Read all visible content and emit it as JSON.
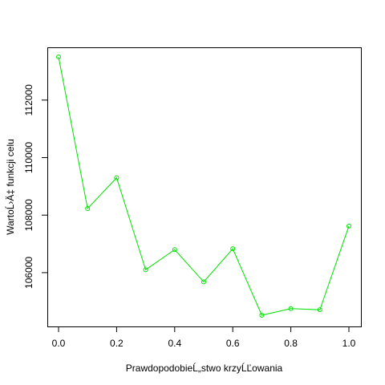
{
  "chart_data": {
    "type": "line",
    "xlabel": "PrawdopodobieĹ„stwo krzyĹĽowania",
    "ylabel": "WartoĹ›Ä‡ funkcji celu",
    "x": [
      0.0,
      0.1,
      0.2,
      0.3,
      0.4,
      0.5,
      0.6,
      0.7,
      0.8,
      0.9,
      1.0
    ],
    "series": [
      {
        "values": [
          113500,
          108230,
          109300,
          106100,
          106800,
          105680,
          106830,
          104520,
          104750,
          104710,
          107620
        ],
        "color": "#00e000"
      }
    ],
    "xlim": [
      0.0,
      1.0
    ],
    "ylim": [
      104520,
      113500
    ],
    "xticks": [
      0.0,
      0.2,
      0.4,
      0.6,
      0.8,
      1.0
    ],
    "xtick_labels": [
      "0.0",
      "0.2",
      "0.4",
      "0.6",
      "0.8",
      "1.0"
    ],
    "yticks": [
      106000,
      108000,
      110000,
      112000
    ],
    "ytick_labels": [
      "106000",
      "108000",
      "110000",
      "112000"
    ],
    "grid": false,
    "legend": "none",
    "marker": "open-circle"
  }
}
